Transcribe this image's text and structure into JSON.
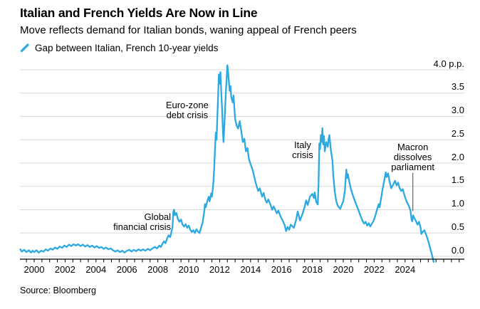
{
  "header": {
    "title": "Italian and French Yields Are Now in Line",
    "subtitle": "Move reflects demand for Italian bonds, waning appeal of French peers",
    "legend_label": "Gap between Italian, French 10-year yields"
  },
  "footer": {
    "source": "Source: Bloomberg"
  },
  "colors": {
    "line": "#2BA9E1",
    "grid": "#D8D8D8",
    "axis": "#000000",
    "pointer": "#6F6F6F"
  },
  "chart_data": {
    "type": "line",
    "title": "Italian and French Yields Are Now in Line",
    "series_name": "Gap between Italian, French 10-year yields",
    "unit": "p.p.",
    "x_domain": [
      1999.1,
      2025.9
    ],
    "ylim": [
      -0.25,
      4.15
    ],
    "grid": "horizontal",
    "legend_position": "top-left",
    "y_ticks": [
      {
        "v": 0.0,
        "label": "0.0"
      },
      {
        "v": 0.5,
        "label": "0.5"
      },
      {
        "v": 1.0,
        "label": "1.0"
      },
      {
        "v": 1.5,
        "label": "1.5"
      },
      {
        "v": 2.0,
        "label": "2.0"
      },
      {
        "v": 2.5,
        "label": "2.5"
      },
      {
        "v": 3.0,
        "label": "3.0"
      },
      {
        "v": 3.5,
        "label": "3.5"
      },
      {
        "v": 4.0,
        "label": "4.0 p.p."
      }
    ],
    "x_ticks": {
      "start": 1999.5,
      "end": 2027.5,
      "step": 0.5
    },
    "x_labels": [
      {
        "year": 2000,
        "label": "2000"
      },
      {
        "year": 2002,
        "label": "2002"
      },
      {
        "year": 2004,
        "label": "2004"
      },
      {
        "year": 2006,
        "label": "2006"
      },
      {
        "year": 2008,
        "label": "2008"
      },
      {
        "year": 2010,
        "label": "2010"
      },
      {
        "year": 2012,
        "label": "2012"
      },
      {
        "year": 2014,
        "label": "2014"
      },
      {
        "year": 2016,
        "label": "2016"
      },
      {
        "year": 2018,
        "label": "2018"
      },
      {
        "year": 2020,
        "label": "2020"
      },
      {
        "year": 2022,
        "label": "2022"
      },
      {
        "year": 2024,
        "label": "2024"
      }
    ],
    "annotations": [
      {
        "id": "euro-zone-debt-crisis",
        "lines": [
          "Euro-zone",
          "debt crisis"
        ],
        "year": 2009.9,
        "value_top": 3.34,
        "align": "center"
      },
      {
        "id": "global-financial-crisis",
        "lines": [
          "Global",
          "financial crisis"
        ],
        "year": 2008.85,
        "value_top": 0.95,
        "align": "right"
      },
      {
        "id": "italy-crisis",
        "lines": [
          "Italy",
          "crisis"
        ],
        "year": 2017.37,
        "value_top": 2.49,
        "align": "center"
      },
      {
        "id": "macron-dissolves-parliament",
        "lines": [
          "Macron",
          "dissolves",
          "parliament"
        ],
        "year": 2024.5,
        "value_top": 2.44,
        "align": "center",
        "pointer": {
          "year": 2024.5,
          "value_from": 1.79,
          "value_to": 0.97
        }
      }
    ],
    "points": [
      [
        1999.1,
        0.15
      ],
      [
        1999.2,
        0.1
      ],
      [
        1999.35,
        0.14
      ],
      [
        1999.5,
        0.09
      ],
      [
        1999.65,
        0.13
      ],
      [
        1999.8,
        0.08
      ],
      [
        1999.9,
        0.12
      ],
      [
        2000.0,
        0.09
      ],
      [
        2000.15,
        0.13
      ],
      [
        2000.3,
        0.08
      ],
      [
        2000.45,
        0.12
      ],
      [
        2000.6,
        0.1
      ],
      [
        2000.75,
        0.15
      ],
      [
        2000.9,
        0.12
      ],
      [
        2001.05,
        0.17
      ],
      [
        2001.2,
        0.14
      ],
      [
        2001.35,
        0.19
      ],
      [
        2001.5,
        0.16
      ],
      [
        2001.65,
        0.21
      ],
      [
        2001.8,
        0.18
      ],
      [
        2001.95,
        0.23
      ],
      [
        2002.1,
        0.2
      ],
      [
        2002.25,
        0.25
      ],
      [
        2002.4,
        0.22
      ],
      [
        2002.55,
        0.26
      ],
      [
        2002.7,
        0.23
      ],
      [
        2002.85,
        0.26
      ],
      [
        2003.0,
        0.22
      ],
      [
        2003.15,
        0.25
      ],
      [
        2003.3,
        0.21
      ],
      [
        2003.45,
        0.24
      ],
      [
        2003.6,
        0.2
      ],
      [
        2003.75,
        0.23
      ],
      [
        2003.9,
        0.19
      ],
      [
        2004.05,
        0.22
      ],
      [
        2004.2,
        0.18
      ],
      [
        2004.35,
        0.2
      ],
      [
        2004.5,
        0.16
      ],
      [
        2004.65,
        0.19
      ],
      [
        2004.8,
        0.15
      ],
      [
        2004.95,
        0.17
      ],
      [
        2005.1,
        0.13
      ],
      [
        2005.25,
        0.1
      ],
      [
        2005.4,
        0.13
      ],
      [
        2005.55,
        0.09
      ],
      [
        2005.7,
        0.12
      ],
      [
        2005.85,
        0.08
      ],
      [
        2006.0,
        0.12
      ],
      [
        2006.15,
        0.14
      ],
      [
        2006.3,
        0.1
      ],
      [
        2006.45,
        0.14
      ],
      [
        2006.6,
        0.11
      ],
      [
        2006.75,
        0.15
      ],
      [
        2006.9,
        0.12
      ],
      [
        2007.05,
        0.15
      ],
      [
        2007.2,
        0.12
      ],
      [
        2007.35,
        0.16
      ],
      [
        2007.5,
        0.13
      ],
      [
        2007.65,
        0.17
      ],
      [
        2007.8,
        0.2
      ],
      [
        2007.95,
        0.17
      ],
      [
        2008.1,
        0.23
      ],
      [
        2008.2,
        0.2
      ],
      [
        2008.3,
        0.27
      ],
      [
        2008.4,
        0.32
      ],
      [
        2008.5,
        0.28
      ],
      [
        2008.6,
        0.38
      ],
      [
        2008.7,
        0.45
      ],
      [
        2008.8,
        0.41
      ],
      [
        2008.9,
        0.55
      ],
      [
        2008.95,
        0.62
      ],
      [
        2009.0,
        0.95
      ],
      [
        2009.05,
        1.0
      ],
      [
        2009.1,
        0.88
      ],
      [
        2009.2,
        0.93
      ],
      [
        2009.3,
        0.8
      ],
      [
        2009.4,
        0.74
      ],
      [
        2009.5,
        0.79
      ],
      [
        2009.6,
        0.68
      ],
      [
        2009.7,
        0.64
      ],
      [
        2009.8,
        0.69
      ],
      [
        2009.9,
        0.61
      ],
      [
        2010.0,
        0.66
      ],
      [
        2010.1,
        0.57
      ],
      [
        2010.2,
        0.52
      ],
      [
        2010.3,
        0.56
      ],
      [
        2010.4,
        0.5
      ],
      [
        2010.5,
        0.58
      ],
      [
        2010.6,
        0.53
      ],
      [
        2010.7,
        0.5
      ],
      [
        2010.8,
        0.62
      ],
      [
        2010.9,
        0.72
      ],
      [
        2011.0,
        0.95
      ],
      [
        2011.05,
        1.12
      ],
      [
        2011.1,
        1.05
      ],
      [
        2011.2,
        1.18
      ],
      [
        2011.3,
        1.28
      ],
      [
        2011.35,
        1.18
      ],
      [
        2011.4,
        1.25
      ],
      [
        2011.45,
        1.35
      ],
      [
        2011.5,
        1.28
      ],
      [
        2011.55,
        1.42
      ],
      [
        2011.6,
        1.6
      ],
      [
        2011.65,
        1.9
      ],
      [
        2011.7,
        2.3
      ],
      [
        2011.75,
        2.65
      ],
      [
        2011.8,
        2.5
      ],
      [
        2011.85,
        2.95
      ],
      [
        2011.9,
        3.4
      ],
      [
        2011.95,
        3.9
      ],
      [
        2012.0,
        3.7
      ],
      [
        2012.05,
        3.95
      ],
      [
        2012.1,
        3.55
      ],
      [
        2012.15,
        3.2
      ],
      [
        2012.2,
        2.8
      ],
      [
        2012.25,
        2.45
      ],
      [
        2012.3,
        2.75
      ],
      [
        2012.35,
        3.15
      ],
      [
        2012.4,
        3.5
      ],
      [
        2012.45,
        3.8
      ],
      [
        2012.5,
        4.1
      ],
      [
        2012.55,
        3.95
      ],
      [
        2012.6,
        3.75
      ],
      [
        2012.65,
        3.55
      ],
      [
        2012.7,
        3.65
      ],
      [
        2012.75,
        3.42
      ],
      [
        2012.85,
        3.3
      ],
      [
        2012.9,
        3.45
      ],
      [
        2013.0,
        2.95
      ],
      [
        2013.1,
        2.8
      ],
      [
        2013.2,
        2.74
      ],
      [
        2013.3,
        2.9
      ],
      [
        2013.4,
        2.68
      ],
      [
        2013.5,
        2.45
      ],
      [
        2013.6,
        2.52
      ],
      [
        2013.7,
        2.25
      ],
      [
        2013.8,
        2.32
      ],
      [
        2013.9,
        2.08
      ],
      [
        2014.0,
        1.98
      ],
      [
        2014.15,
        1.83
      ],
      [
        2014.3,
        1.62
      ],
      [
        2014.4,
        1.5
      ],
      [
        2014.5,
        1.4
      ],
      [
        2014.6,
        1.46
      ],
      [
        2014.75,
        1.28
      ],
      [
        2014.85,
        1.36
      ],
      [
        2014.95,
        1.22
      ],
      [
        2015.05,
        1.15
      ],
      [
        2015.15,
        1.22
      ],
      [
        2015.3,
        1.1
      ],
      [
        2015.4,
        1.0
      ],
      [
        2015.5,
        1.07
      ],
      [
        2015.7,
        0.92
      ],
      [
        2015.8,
        0.98
      ],
      [
        2015.95,
        0.85
      ],
      [
        2016.1,
        0.75
      ],
      [
        2016.2,
        0.68
      ],
      [
        2016.3,
        0.54
      ],
      [
        2016.4,
        0.63
      ],
      [
        2016.5,
        0.57
      ],
      [
        2016.6,
        0.68
      ],
      [
        2016.8,
        0.61
      ],
      [
        2016.95,
        0.78
      ],
      [
        2017.05,
        0.96
      ],
      [
        2017.2,
        0.77
      ],
      [
        2017.35,
        0.9
      ],
      [
        2017.5,
        1.06
      ],
      [
        2017.6,
        1.2
      ],
      [
        2017.7,
        1.1
      ],
      [
        2017.85,
        1.28
      ],
      [
        2018.0,
        1.34
      ],
      [
        2018.1,
        1.25
      ],
      [
        2018.15,
        1.37
      ],
      [
        2018.25,
        1.17
      ],
      [
        2018.35,
        1.11
      ],
      [
        2018.4,
        1.55
      ],
      [
        2018.45,
        2.42
      ],
      [
        2018.5,
        2.3
      ],
      [
        2018.55,
        2.6
      ],
      [
        2018.6,
        2.45
      ],
      [
        2018.65,
        2.75
      ],
      [
        2018.7,
        2.4
      ],
      [
        2018.75,
        2.58
      ],
      [
        2018.8,
        2.25
      ],
      [
        2018.9,
        2.45
      ],
      [
        2019.0,
        2.35
      ],
      [
        2019.05,
        2.52
      ],
      [
        2019.1,
        2.6
      ],
      [
        2019.2,
        2.28
      ],
      [
        2019.3,
        2.05
      ],
      [
        2019.35,
        1.75
      ],
      [
        2019.45,
        1.38
      ],
      [
        2019.55,
        1.18
      ],
      [
        2019.65,
        1.08
      ],
      [
        2019.8,
        1.02
      ],
      [
        2019.9,
        1.1
      ],
      [
        2020.0,
        1.18
      ],
      [
        2020.1,
        1.4
      ],
      [
        2020.2,
        1.86
      ],
      [
        2020.25,
        1.68
      ],
      [
        2020.3,
        1.76
      ],
      [
        2020.4,
        1.58
      ],
      [
        2020.5,
        1.44
      ],
      [
        2020.65,
        1.28
      ],
      [
        2020.8,
        1.14
      ],
      [
        2020.95,
        1.02
      ],
      [
        2021.1,
        0.88
      ],
      [
        2021.25,
        0.76
      ],
      [
        2021.35,
        0.7
      ],
      [
        2021.45,
        0.74
      ],
      [
        2021.55,
        0.66
      ],
      [
        2021.65,
        0.71
      ],
      [
        2021.75,
        0.64
      ],
      [
        2021.85,
        0.7
      ],
      [
        2021.95,
        0.75
      ],
      [
        2022.1,
        0.9
      ],
      [
        2022.2,
        1.02
      ],
      [
        2022.3,
        1.12
      ],
      [
        2022.35,
        1.05
      ],
      [
        2022.45,
        1.25
      ],
      [
        2022.55,
        1.45
      ],
      [
        2022.65,
        1.62
      ],
      [
        2022.75,
        1.8
      ],
      [
        2022.8,
        1.7
      ],
      [
        2022.9,
        1.78
      ],
      [
        2023.0,
        1.6
      ],
      [
        2023.1,
        1.46
      ],
      [
        2023.25,
        1.55
      ],
      [
        2023.35,
        1.62
      ],
      [
        2023.45,
        1.52
      ],
      [
        2023.55,
        1.58
      ],
      [
        2023.65,
        1.46
      ],
      [
        2023.75,
        1.4
      ],
      [
        2023.85,
        1.44
      ],
      [
        2023.95,
        1.32
      ],
      [
        2024.05,
        1.22
      ],
      [
        2024.15,
        1.14
      ],
      [
        2024.25,
        1.08
      ],
      [
        2024.35,
        0.98
      ],
      [
        2024.42,
        0.78
      ],
      [
        2024.47,
        0.75
      ],
      [
        2024.52,
        0.88
      ],
      [
        2024.6,
        0.82
      ],
      [
        2024.7,
        0.76
      ],
      [
        2024.8,
        0.68
      ],
      [
        2024.9,
        0.74
      ],
      [
        2025.0,
        0.62
      ],
      [
        2025.05,
        0.48
      ],
      [
        2025.15,
        0.53
      ],
      [
        2025.25,
        0.56
      ],
      [
        2025.35,
        0.47
      ],
      [
        2025.45,
        0.38
      ],
      [
        2025.55,
        0.27
      ],
      [
        2025.65,
        0.14
      ],
      [
        2025.75,
        0.02
      ],
      [
        2025.85,
        -0.12
      ]
    ]
  }
}
